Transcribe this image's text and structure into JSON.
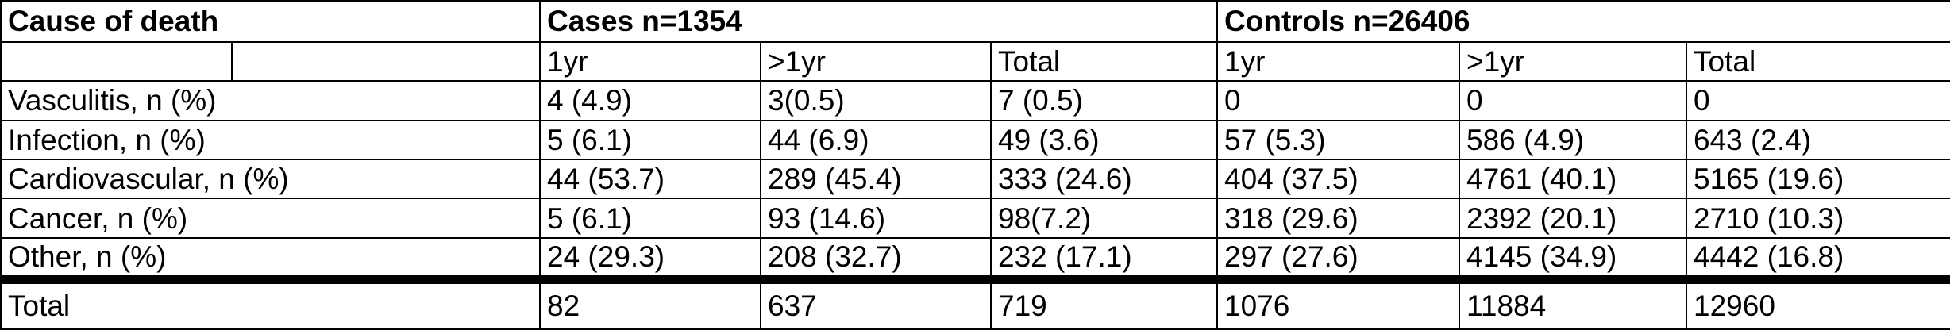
{
  "headers": {
    "cause": "Cause of death",
    "cases": "Cases n=1354",
    "controls": "Controls n=26406"
  },
  "subheaders": [
    "1yr",
    ">1yr",
    "Total",
    "1yr",
    ">1yr",
    "Total"
  ],
  "rows": [
    {
      "label": "Vasculitis, n (%)",
      "cells": [
        "4 (4.9)",
        "3(0.5)",
        "7 (0.5)",
        "0",
        "0",
        "0"
      ]
    },
    {
      "label": "Infection, n (%)",
      "cells": [
        "5 (6.1)",
        "44 (6.9)",
        "49 (3.6)",
        "57 (5.3)",
        "586 (4.9)",
        "643 (2.4)"
      ]
    },
    {
      "label": "Cardiovascular, n (%)",
      "cells": [
        "44 (53.7)",
        "289 (45.4)",
        "333 (24.6)",
        "404 (37.5)",
        "4761 (40.1)",
        "5165 (19.6)"
      ]
    },
    {
      "label": "Cancer, n (%)",
      "cells": [
        "5 (6.1)",
        "93 (14.6)",
        "98(7.2)",
        "318 (29.6)",
        "2392 (20.1)",
        "2710 (10.3)"
      ]
    },
    {
      "label": "Other, n (%)",
      "cells": [
        "24 (29.3)",
        "208 (32.7)",
        "232 (17.1)",
        "297 (27.6)",
        "4145 (34.9)",
        "4442 (16.8)"
      ]
    }
  ],
  "total_row": {
    "label": "Total",
    "cells": [
      "82",
      "637",
      "719",
      "1076",
      "11884",
      "12960"
    ]
  }
}
